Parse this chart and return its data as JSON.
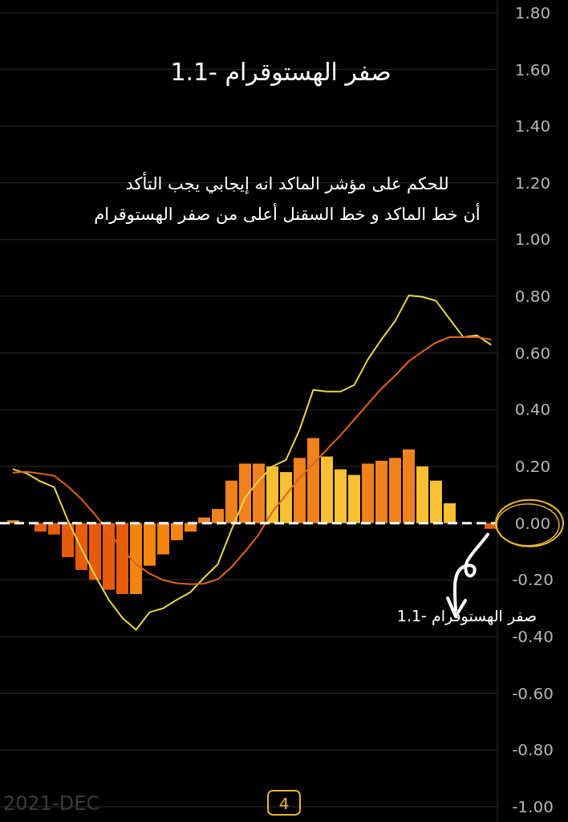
{
  "chart_data": {
    "type": "bar",
    "title": "1.1- صفر الهستوقرام",
    "subtitle": "للحكم على مؤشر الماكد انه إيجابي يجب التأكد\nأن خط الماكد و خط السقنل أعلى من صفر الهستوقرام",
    "categories": [
      null,
      null,
      null,
      null,
      null,
      null,
      null,
      null,
      null,
      null,
      null,
      null,
      null,
      null,
      null,
      null,
      null,
      null,
      null,
      null,
      null,
      null,
      null,
      null,
      null,
      null,
      null,
      null,
      null,
      null,
      null,
      null,
      null,
      null,
      null,
      null
    ],
    "values": [
      0.01,
      0,
      -0.03,
      -0.04,
      -0.12,
      -0.165,
      -0.2,
      -0.235,
      -0.25,
      -0.25,
      -0.15,
      -0.11,
      -0.06,
      -0.03,
      0.02,
      0.05,
      0.15,
      0.21,
      0.21,
      0.2,
      0.18,
      0.23,
      0.3,
      0.235,
      0.19,
      0.17,
      0.21,
      0.22,
      0.23,
      0.26,
      0.2,
      0.15,
      0.07,
      0,
      0,
      -0.02
    ],
    "colors": [
      "#f08a1e",
      "#f08a1e",
      "#e65c0a",
      "#e65c0a",
      "#e65c0a",
      "#e65c0a",
      "#e65c0a",
      "#e65c0a",
      "#e65c0a",
      "#f5850f",
      "#f5850f",
      "#f5850f",
      "#f5850f",
      "#f5850f",
      "#f0821e",
      "#f0821e",
      "#f0821e",
      "#f0821e",
      "#f0821e",
      "#f8c032",
      "#f8c032",
      "#f0821e",
      "#f0821e",
      "#f8c032",
      "#f8c032",
      "#f8c032",
      "#f0821e",
      "#f0821e",
      "#f0821e",
      "#f0821e",
      "#f8c032",
      "#f8c032",
      "#f8c032",
      "#f0821e",
      "#f0821e",
      "#e65c0a"
    ],
    "series": [
      {
        "type": "line",
        "color": "#e6d64a",
        "values": [
          0.19,
          0.175,
          0.147,
          0.127,
          0.01,
          -0.09,
          -0.185,
          -0.27,
          -0.334,
          -0.376,
          -0.314,
          -0.3,
          -0.27,
          -0.243,
          -0.192,
          -0.145,
          -0.023,
          0.09,
          0.15,
          0.2,
          0.223,
          0.33,
          0.47,
          0.464,
          0.464,
          0.487,
          0.577,
          0.648,
          0.713,
          0.803,
          0.798,
          0.784,
          0.72,
          0.656,
          0.662,
          0.63
        ]
      },
      {
        "type": "line",
        "color": "#e0641a",
        "values": [
          0.178,
          0.181,
          0.175,
          0.167,
          0.13,
          0.085,
          0.03,
          -0.03,
          -0.093,
          -0.145,
          -0.178,
          -0.201,
          -0.212,
          -0.215,
          -0.213,
          -0.198,
          -0.155,
          -0.1,
          -0.04,
          0.04,
          0.1,
          0.16,
          0.21,
          0.26,
          0.31,
          0.365,
          0.42,
          0.475,
          0.52,
          0.571,
          0.605,
          0.637,
          0.656,
          0.656,
          0.656,
          0.648
        ]
      }
    ],
    "ylim": [
      -1.054,
      1.845
    ],
    "yticks": [
      {
        "value": -1,
        "label": "-1.00"
      },
      {
        "value": -0.8,
        "label": "-0.80"
      },
      {
        "value": -0.6,
        "label": "-0.60"
      },
      {
        "value": -0.4,
        "label": "-0.40"
      },
      {
        "value": -0.2,
        "label": "-0.20"
      },
      {
        "value": 0,
        "label": "0.00"
      },
      {
        "value": 0.2,
        "label": "0.20"
      },
      {
        "value": 0.4,
        "label": "0.40"
      },
      {
        "value": 0.6,
        "label": "0.60"
      },
      {
        "value": 0.8,
        "label": "0.80"
      },
      {
        "value": 1,
        "label": "1.00"
      },
      {
        "value": 1.2,
        "label": "1.20"
      },
      {
        "value": 1.4,
        "label": "1.40"
      },
      {
        "value": 1.6,
        "label": "1.60"
      },
      {
        "value": 1.8,
        "label": "1.80"
      }
    ],
    "grid": "y",
    "ref_lines": [
      {
        "axis": "y",
        "value": 0,
        "color": "#ffffff",
        "line_style": "dashed"
      }
    ],
    "annotations": [
      "1.1- صفر الهستوقرام",
      "2021-DEC",
      "4"
    ]
  }
}
